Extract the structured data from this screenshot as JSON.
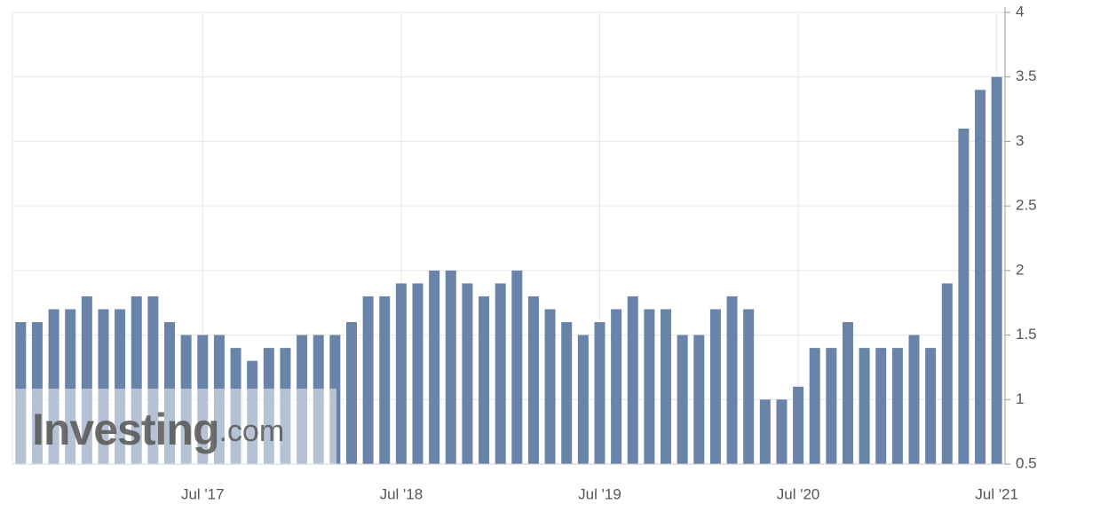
{
  "chart_data": {
    "type": "bar",
    "categories": [
      null,
      null,
      null,
      null,
      null,
      null,
      null,
      null,
      null,
      null,
      null,
      "Jul '17",
      null,
      null,
      null,
      null,
      null,
      null,
      null,
      null,
      null,
      null,
      null,
      "Jul '18",
      null,
      null,
      null,
      null,
      null,
      null,
      null,
      null,
      null,
      null,
      null,
      "Jul '19",
      null,
      null,
      null,
      null,
      null,
      null,
      null,
      null,
      null,
      null,
      null,
      "Jul '20",
      null,
      null,
      null,
      null,
      null,
      null,
      null,
      null,
      null,
      null,
      null,
      "Jul '21"
    ],
    "values": [
      1.6,
      1.6,
      1.7,
      1.7,
      1.8,
      1.7,
      1.7,
      1.8,
      1.8,
      1.6,
      1.5,
      1.5,
      1.5,
      1.4,
      1.3,
      1.4,
      1.4,
      1.5,
      1.5,
      1.5,
      1.6,
      1.8,
      1.8,
      1.9,
      1.9,
      2.0,
      2.0,
      1.9,
      1.8,
      1.9,
      2.0,
      1.8,
      1.7,
      1.6,
      1.5,
      1.6,
      1.7,
      1.8,
      1.7,
      1.7,
      1.5,
      1.5,
      1.7,
      1.8,
      1.7,
      1.0,
      1.0,
      1.1,
      1.4,
      1.4,
      1.6,
      1.4,
      1.4,
      1.4,
      1.5,
      1.4,
      1.9,
      3.1,
      3.4,
      3.5
    ],
    "color": "#6a83a9",
    "ylim": [
      0.5,
      4
    ],
    "yticks": [
      0.5,
      1,
      1.5,
      2,
      2.5,
      3,
      3.5,
      4
    ],
    "grid": true,
    "watermark": {
      "brand": "Investing",
      "suffix": ".com"
    }
  }
}
